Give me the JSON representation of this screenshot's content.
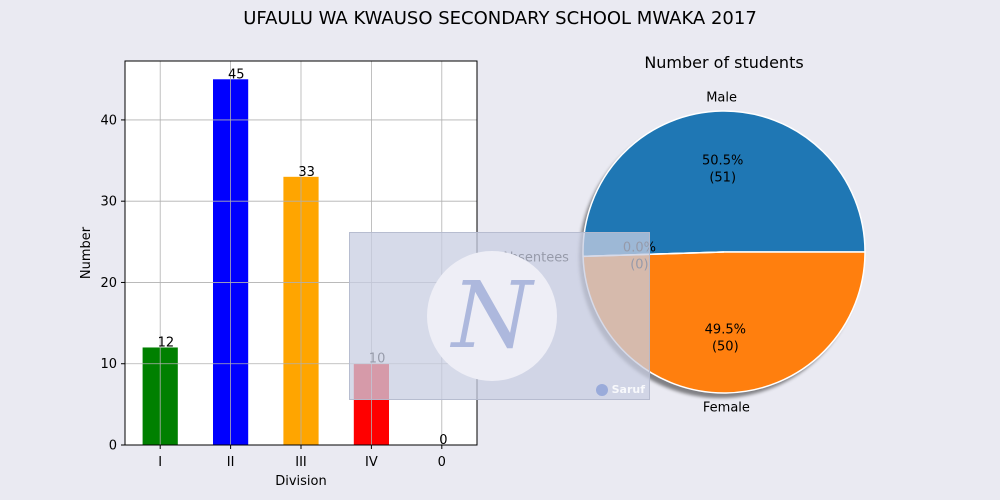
{
  "title": "UFAULU WA KWAUSO SECONDARY SCHOOL MWAKA 2017",
  "chart_data": [
    {
      "type": "bar",
      "categories": [
        "I",
        "II",
        "III",
        "IV",
        "0"
      ],
      "values": [
        12,
        45,
        33,
        10,
        0
      ],
      "value_labels": [
        "12",
        "45",
        "33",
        "10",
        "0"
      ],
      "colors": [
        "#008000",
        "#0000ff",
        "#ffa500",
        "#ff0000",
        "#800080"
      ],
      "xlabel": "Division",
      "ylabel": "Number",
      "ylim": [
        0,
        47.25
      ],
      "yticks": [
        0,
        10,
        20,
        30,
        40
      ],
      "ytick_labels": [
        "0",
        "10",
        "20",
        "30",
        "40"
      ],
      "grid": true
    },
    {
      "type": "pie",
      "title": "Number of students",
      "labels": [
        "Male",
        "Absentees",
        "Female"
      ],
      "values": [
        51,
        0,
        50
      ],
      "percent_labels": [
        "50.5%",
        "0.0%",
        "49.5%"
      ],
      "count_labels": [
        "(51)",
        "(0)",
        "(50)"
      ],
      "colors": [
        "#1f77b4",
        "#2ca02c",
        "#ff7f0e"
      ],
      "shadow": true
    }
  ],
  "watermark": {
    "brand": "Saruf"
  }
}
